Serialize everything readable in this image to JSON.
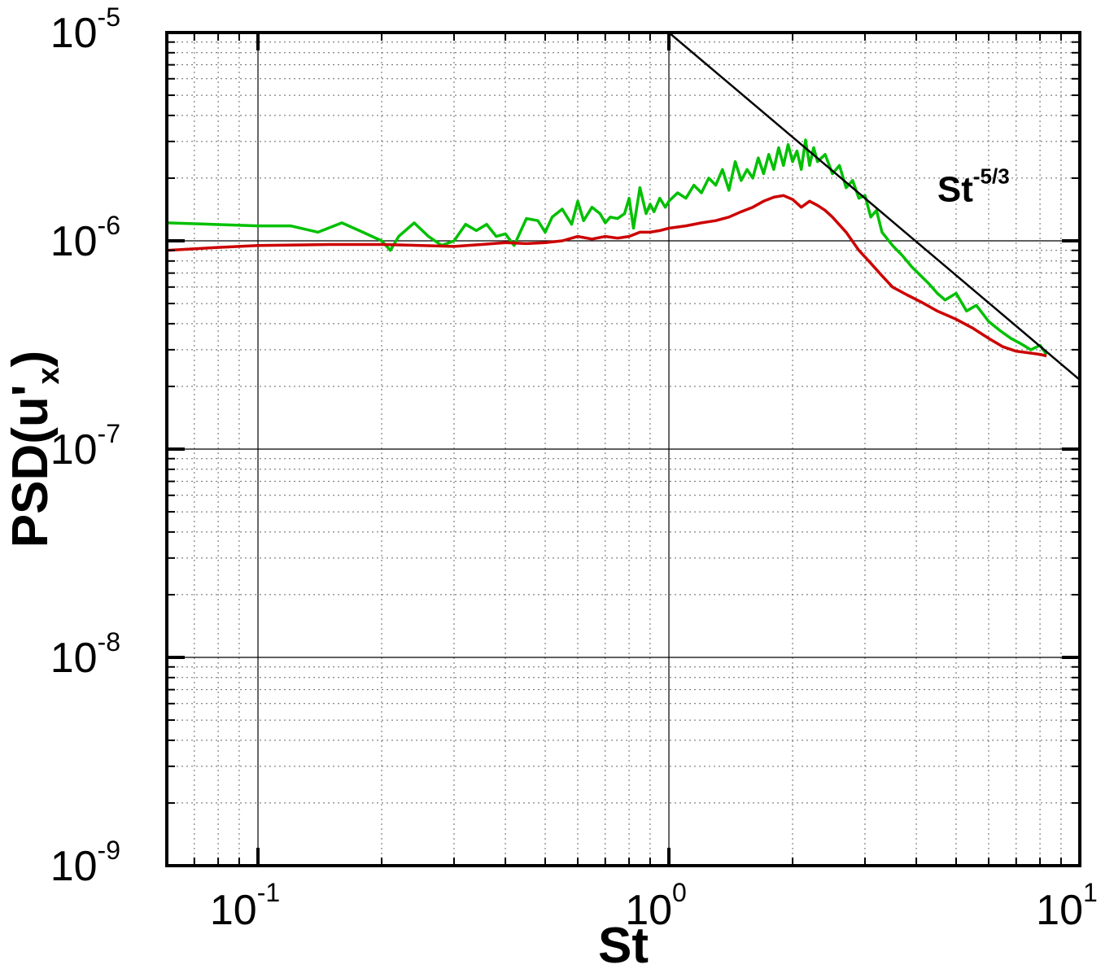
{
  "chart_data": {
    "type": "line",
    "xscale": "log",
    "yscale": "log",
    "xlim": [
      0.06,
      10
    ],
    "ylim": [
      1e-09,
      1e-05
    ],
    "grid": true,
    "xlabel": "St",
    "ylabel_main": "PSD(u'",
    "ylabel_sub": "x",
    "ylabel_close": ")",
    "x_ticks": [
      {
        "value": 0.1,
        "base": "10",
        "exp": "-1"
      },
      {
        "value": 1,
        "base": "10",
        "exp": "0"
      },
      {
        "value": 10,
        "base": "10",
        "exp": "1"
      }
    ],
    "y_ticks": [
      {
        "value": 1e-05,
        "base": "10",
        "exp": "-5"
      },
      {
        "value": 1e-06,
        "base": "10",
        "exp": "-6"
      },
      {
        "value": 1e-07,
        "base": "10",
        "exp": "-7"
      },
      {
        "value": 1e-08,
        "base": "10",
        "exp": "-8"
      },
      {
        "value": 1e-09,
        "base": "10",
        "exp": "-9"
      }
    ],
    "annotation": {
      "base": "St",
      "exp": "-5/3",
      "x": 4.5,
      "y": 1.55e-06
    },
    "series": [
      {
        "color": "#00c000",
        "x": [
          0.06,
          0.1,
          0.12,
          0.14,
          0.16,
          0.18,
          0.2,
          0.21,
          0.22,
          0.24,
          0.26,
          0.28,
          0.3,
          0.32,
          0.34,
          0.36,
          0.38,
          0.4,
          0.42,
          0.45,
          0.48,
          0.5,
          0.52,
          0.55,
          0.58,
          0.6,
          0.62,
          0.65,
          0.68,
          0.7,
          0.72,
          0.75,
          0.78,
          0.8,
          0.82,
          0.85,
          0.88,
          0.9,
          0.92,
          0.95,
          0.98,
          1.0,
          1.05,
          1.1,
          1.15,
          1.2,
          1.25,
          1.3,
          1.35,
          1.4,
          1.45,
          1.5,
          1.55,
          1.6,
          1.65,
          1.7,
          1.75,
          1.8,
          1.85,
          1.9,
          1.95,
          2.0,
          2.05,
          2.1,
          2.15,
          2.2,
          2.25,
          2.3,
          2.4,
          2.5,
          2.6,
          2.7,
          2.8,
          2.9,
          3.0,
          3.1,
          3.2,
          3.3,
          3.5,
          3.7,
          3.9,
          4.1,
          4.3,
          4.5,
          4.7,
          5.0,
          5.3,
          5.6,
          6.0,
          6.4,
          6.8,
          7.2,
          7.6,
          8.0,
          8.3
        ],
        "y": [
          1.22e-06,
          1.18e-06,
          1.18e-06,
          1.1e-06,
          1.22e-06,
          1.1e-06,
          1e-06,
          9e-07,
          1.05e-06,
          1.22e-06,
          1.05e-06,
          9.5e-07,
          1e-06,
          1.2e-06,
          1.12e-06,
          1.2e-06,
          1.05e-06,
          1.08e-06,
          9.5e-07,
          1.28e-06,
          1.25e-06,
          1.1e-06,
          1.3e-06,
          1.42e-06,
          1.2e-06,
          1.55e-06,
          1.25e-06,
          1.45e-06,
          1.35e-06,
          1.22e-06,
          1.3e-06,
          1.28e-06,
          1.35e-06,
          1.6e-06,
          1.15e-06,
          1.8e-06,
          1.35e-06,
          1.5e-06,
          1.38e-06,
          1.6e-06,
          1.45e-06,
          1.55e-06,
          1.7e-06,
          1.6e-06,
          1.85e-06,
          1.7e-06,
          2e-06,
          1.85e-06,
          2.2e-06,
          1.75e-06,
          2.4e-06,
          1.95e-06,
          2.2e-06,
          2e-06,
          2.5e-06,
          2.1e-06,
          2.6e-06,
          2.2e-06,
          2.8e-06,
          2.3e-06,
          2.9e-06,
          2.4e-06,
          2.7e-06,
          2.2e-06,
          3.05e-06,
          2.3e-06,
          2.8e-06,
          2.4e-06,
          2.6e-06,
          2.1e-06,
          2.3e-06,
          1.8e-06,
          1.95e-06,
          1.6e-06,
          1.65e-06,
          1.3e-06,
          1.4e-06,
          1.1e-06,
          9.5e-07,
          8.5e-07,
          7.5e-07,
          6.8e-07,
          6.2e-07,
          5.6e-07,
          5.2e-07,
          5.6e-07,
          4.6e-07,
          4.9e-07,
          4.1e-07,
          3.7e-07,
          3.4e-07,
          3.2e-07,
          3e-07,
          3.15e-07,
          2.85e-07
        ]
      },
      {
        "color": "#cc0000",
        "x": [
          0.06,
          0.08,
          0.1,
          0.15,
          0.2,
          0.25,
          0.3,
          0.35,
          0.4,
          0.45,
          0.5,
          0.55,
          0.6,
          0.65,
          0.7,
          0.75,
          0.8,
          0.85,
          0.9,
          0.95,
          1.0,
          1.1,
          1.2,
          1.3,
          1.4,
          1.5,
          1.6,
          1.7,
          1.8,
          1.9,
          2.0,
          2.1,
          2.2,
          2.3,
          2.4,
          2.5,
          2.7,
          2.9,
          3.1,
          3.3,
          3.5,
          3.8,
          4.1,
          4.5,
          5.0,
          5.5,
          6.0,
          6.5,
          7.0,
          7.5,
          8.0,
          8.3
        ],
        "y": [
          9e-07,
          9.3e-07,
          9.5e-07,
          9.6e-07,
          9.6e-07,
          9.5e-07,
          9.4e-07,
          9.6e-07,
          9.8e-07,
          9.7e-07,
          9.8e-07,
          1e-06,
          1.05e-06,
          1.02e-06,
          1.05e-06,
          1.03e-06,
          1.05e-06,
          1.1e-06,
          1.1e-06,
          1.12e-06,
          1.15e-06,
          1.18e-06,
          1.22e-06,
          1.25e-06,
          1.3e-06,
          1.38e-06,
          1.45e-06,
          1.55e-06,
          1.62e-06,
          1.65e-06,
          1.58e-06,
          1.45e-06,
          1.55e-06,
          1.48e-06,
          1.4e-06,
          1.3e-06,
          1.1e-06,
          9e-07,
          7.8e-07,
          6.8e-07,
          6e-07,
          5.5e-07,
          5.1e-07,
          4.6e-07,
          4.2e-07,
          3.8e-07,
          3.4e-07,
          3.1e-07,
          2.95e-07,
          2.9e-07,
          2.85e-07,
          2.8e-07
        ]
      },
      {
        "color": "#000000",
        "x": [
          1.0,
          10.0
        ],
        "y": [
          1e-05,
          2.15e-07
        ]
      }
    ]
  }
}
